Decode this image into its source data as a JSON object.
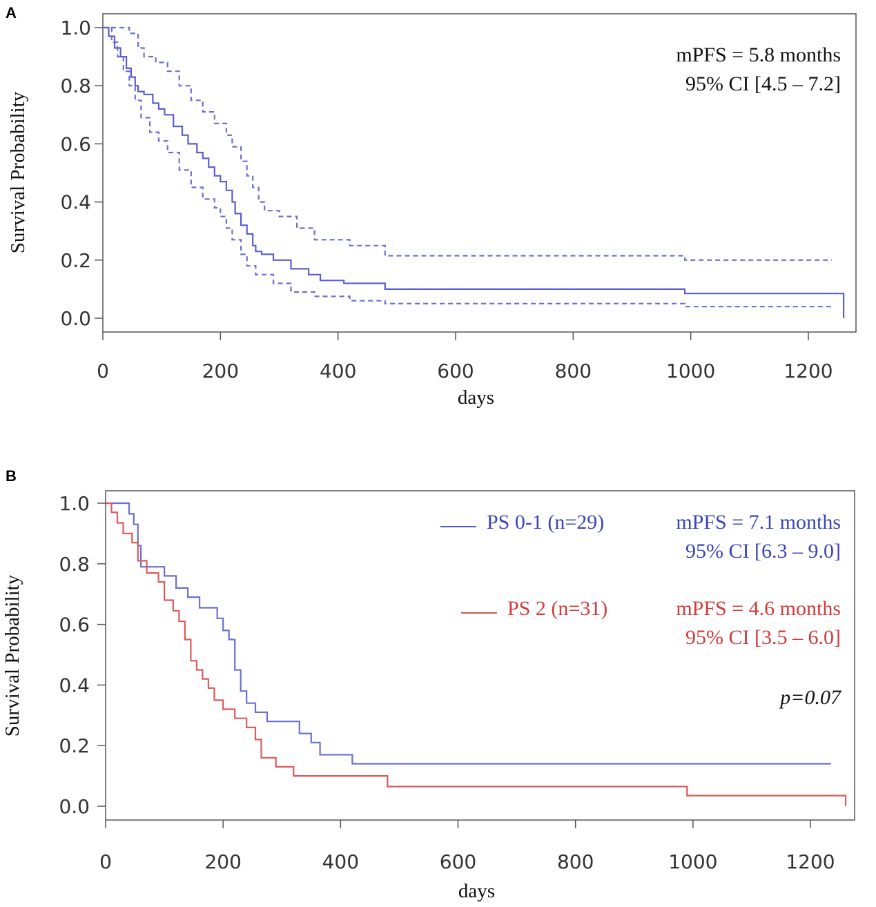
{
  "chart_data": [
    {
      "panel": "A",
      "type": "line",
      "subtype": "kaplan-meier",
      "xlabel": "days",
      "ylabel": "Survival Probability",
      "xlim": [
        0,
        1260
      ],
      "ylim": [
        0,
        1.0
      ],
      "xticks": [
        "0",
        "200",
        "400",
        "600",
        "800",
        "1000",
        "1200"
      ],
      "xtick_values": [
        0,
        200,
        400,
        600,
        800,
        1000,
        1200
      ],
      "yticks": [
        "0.0",
        "0.2",
        "0.4",
        "0.6",
        "0.8",
        "1.0"
      ],
      "ytick_values": [
        0,
        0.2,
        0.4,
        0.6,
        0.8,
        1.0
      ],
      "annotations": [
        {
          "text": "mPFS = 5.8 months",
          "color": "#111111"
        },
        {
          "text": "95% CI [4.5 – 7.2]",
          "color": "#111111"
        }
      ],
      "series": [
        {
          "name": "estimate",
          "color": "#5a5fcc",
          "style": "solid",
          "x": [
            0,
            10,
            20,
            30,
            40,
            48,
            55,
            60,
            70,
            85,
            95,
            105,
            120,
            135,
            145,
            160,
            170,
            180,
            190,
            200,
            210,
            220,
            225,
            235,
            245,
            255,
            260,
            270,
            290,
            320,
            350,
            370,
            410,
            480,
            990,
            1260,
            1260
          ],
          "y": [
            1.0,
            0.97,
            0.93,
            0.9,
            0.86,
            0.83,
            0.8,
            0.78,
            0.77,
            0.74,
            0.72,
            0.7,
            0.66,
            0.63,
            0.6,
            0.57,
            0.55,
            0.52,
            0.49,
            0.47,
            0.44,
            0.4,
            0.36,
            0.32,
            0.29,
            0.25,
            0.23,
            0.22,
            0.2,
            0.17,
            0.15,
            0.13,
            0.12,
            0.1,
            0.085,
            0.085,
            0.0
          ]
        },
        {
          "name": "upper 95% CI",
          "color": "#6a6fd8",
          "style": "dashed",
          "x": [
            0,
            40,
            45,
            60,
            70,
            90,
            110,
            130,
            150,
            170,
            190,
            210,
            220,
            235,
            245,
            255,
            265,
            275,
            300,
            330,
            360,
            420,
            480,
            990,
            1240
          ],
          "y": [
            1.0,
            1.0,
            0.98,
            0.93,
            0.9,
            0.88,
            0.85,
            0.8,
            0.75,
            0.71,
            0.67,
            0.63,
            0.59,
            0.54,
            0.49,
            0.45,
            0.4,
            0.37,
            0.35,
            0.31,
            0.27,
            0.25,
            0.215,
            0.2,
            0.2
          ]
        },
        {
          "name": "lower 95% CI",
          "color": "#6a6fd8",
          "style": "dashed",
          "x": [
            0,
            15,
            25,
            35,
            45,
            55,
            65,
            80,
            95,
            110,
            130,
            150,
            170,
            190,
            200,
            210,
            220,
            235,
            245,
            260,
            290,
            320,
            360,
            420,
            480,
            990,
            1240
          ],
          "y": [
            1.0,
            0.95,
            0.9,
            0.85,
            0.8,
            0.75,
            0.69,
            0.64,
            0.61,
            0.57,
            0.51,
            0.45,
            0.41,
            0.38,
            0.35,
            0.31,
            0.27,
            0.22,
            0.18,
            0.15,
            0.12,
            0.09,
            0.075,
            0.06,
            0.05,
            0.04,
            0.04
          ]
        }
      ]
    },
    {
      "panel": "B",
      "type": "line",
      "subtype": "kaplan-meier",
      "xlabel": "days",
      "ylabel": "Survival Probability",
      "xlim": [
        0,
        1260
      ],
      "ylim": [
        0,
        1.0
      ],
      "xticks": [
        "0",
        "200",
        "400",
        "600",
        "800",
        "1000",
        "1200"
      ],
      "xtick_values": [
        0,
        200,
        400,
        600,
        800,
        1000,
        1200
      ],
      "yticks": [
        "0.0",
        "0.2",
        "0.4",
        "0.6",
        "0.8",
        "1.0"
      ],
      "ytick_values": [
        0,
        0.2,
        0.4,
        0.6,
        0.8,
        1.0
      ],
      "legend": [
        {
          "label": "PS 0-1 (n=29)",
          "color": "#3b44b8",
          "stat1": "mPFS = 7.1 months",
          "stat2": "95% CI [6.3 – 9.0]"
        },
        {
          "label": "PS 2 (n=31)",
          "color": "#d43a3a",
          "stat1": "mPFS = 4.6 months",
          "stat2": "95% CI [3.5 – 6.0]"
        }
      ],
      "p_value": "p=0.07",
      "series": [
        {
          "name": "PS 0-1 (n=29)",
          "color": "#6a70d0",
          "style": "solid",
          "x": [
            0,
            35,
            40,
            48,
            55,
            60,
            100,
            120,
            140,
            160,
            190,
            200,
            210,
            220,
            230,
            240,
            255,
            275,
            290,
            330,
            350,
            365,
            420,
            1235
          ],
          "y": [
            1.0,
            1.0,
            0.965,
            0.93,
            0.86,
            0.79,
            0.76,
            0.72,
            0.69,
            0.655,
            0.62,
            0.58,
            0.55,
            0.45,
            0.38,
            0.34,
            0.31,
            0.28,
            0.28,
            0.24,
            0.21,
            0.17,
            0.14,
            0.14
          ]
        },
        {
          "name": "PS 2 (n=31)",
          "color": "#dd5a5a",
          "style": "solid",
          "x": [
            0,
            10,
            20,
            30,
            45,
            55,
            70,
            90,
            100,
            115,
            125,
            135,
            145,
            155,
            165,
            175,
            185,
            200,
            220,
            240,
            255,
            265,
            290,
            320,
            480,
            990,
            1260,
            1260
          ],
          "y": [
            1.0,
            0.97,
            0.935,
            0.9,
            0.87,
            0.81,
            0.77,
            0.74,
            0.68,
            0.645,
            0.61,
            0.55,
            0.48,
            0.45,
            0.42,
            0.39,
            0.35,
            0.32,
            0.29,
            0.26,
            0.22,
            0.16,
            0.13,
            0.1,
            0.065,
            0.035,
            0.035,
            0.0
          ]
        }
      ]
    }
  ],
  "panels": {
    "a": {
      "letter": "A"
    },
    "b": {
      "letter": "B"
    }
  }
}
